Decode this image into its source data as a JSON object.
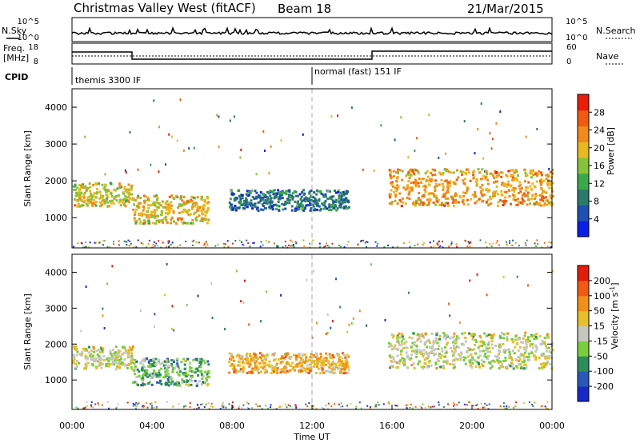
{
  "header": {
    "station": "Christmas Valley West (fitACF)",
    "beam": "Beam 18",
    "date": "21/Mar/2015"
  },
  "strips": {
    "nsky_label": "N.Sky",
    "nsearch_label": "N.Search",
    "noise_tick_top": "10^5",
    "noise_tick_bottom": "10^0",
    "freq_label_line1": "Freq.",
    "freq_label_line2": "[MHz]",
    "freq_tick_top": "18",
    "freq_tick_bottom": "8",
    "nave_label": "Nave",
    "nave_tick_top": "60",
    "nave_tick_bottom": "0",
    "cpid_label": "CPID",
    "cpid_segments": [
      {
        "label": "themis 3300 IF",
        "start_hour": 0,
        "end_hour": 12
      },
      {
        "label": "normal (fast) 151 IF",
        "start_hour": 12,
        "end_hour": 24
      }
    ]
  },
  "colors": {
    "power_scale": [
      "#0a1ee6",
      "#1f4fb0",
      "#2c7a6a",
      "#3aa84a",
      "#86c23a",
      "#e8b820",
      "#f08a18",
      "#f25a10",
      "#e61e0a"
    ],
    "velocity_scale": [
      "#1828c8",
      "#2a58b8",
      "#2c8c5c",
      "#7acd3c",
      "#c6c6c0",
      "#e6c028",
      "#f09018",
      "#f05a12",
      "#e01e0a"
    ]
  },
  "chart_data": [
    {
      "type": "heatmap",
      "title": "",
      "xlabel": "Time UT",
      "ylabel": "Slant Range [km]",
      "colorbar_label": "Power [dB]",
      "colorbar_ticks": [
        "4",
        "8",
        "12",
        "16",
        "20",
        "24",
        "28"
      ],
      "colorbar_range": [
        0,
        32
      ],
      "x_ticks": [
        "00:00",
        "04:00",
        "08:00",
        "12:00",
        "16:00",
        "20:00",
        "00:00"
      ],
      "x_range_hours": [
        0,
        24
      ],
      "y_ticks": [
        "1000",
        "2000",
        "3000",
        "4000"
      ],
      "y_range_km": [
        180,
        4500
      ],
      "regions": [
        {
          "t_start": 0.0,
          "t_end": 3.0,
          "range_center": 1650,
          "range_width": 320,
          "value": 18
        },
        {
          "t_start": 3.0,
          "t_end": 6.8,
          "range_center": 1250,
          "range_width": 380,
          "value": 20
        },
        {
          "t_start": 7.8,
          "t_end": 13.8,
          "range_center": 1500,
          "range_width": 280,
          "value": 8
        },
        {
          "t_start": 15.8,
          "t_end": 24.0,
          "range_center": 1850,
          "range_width": 500,
          "value": 22
        }
      ]
    },
    {
      "type": "heatmap",
      "title": "",
      "xlabel": "Time UT",
      "ylabel": "Slant Range [km]",
      "colorbar_label": "Velocity [m s^-1]",
      "colorbar_ticks": [
        "-200",
        "-100",
        "-50",
        "-15",
        "15",
        "50",
        "100",
        "200"
      ],
      "colorbar_range": [
        -250,
        250
      ],
      "x_ticks": [
        "00:00",
        "04:00",
        "08:00",
        "12:00",
        "16:00",
        "20:00",
        "00:00"
      ],
      "x_range_hours": [
        0,
        24
      ],
      "y_ticks": [
        "1000",
        "2000",
        "3000",
        "4000"
      ],
      "y_range_km": [
        180,
        4500
      ],
      "regions": [
        {
          "t_start": 0.0,
          "t_end": 3.0,
          "range_center": 1650,
          "range_width": 320,
          "value": 0
        },
        {
          "t_start": 3.0,
          "t_end": 6.8,
          "range_center": 1250,
          "range_width": 380,
          "value": -70
        },
        {
          "t_start": 7.8,
          "t_end": 13.8,
          "range_center": 1500,
          "range_width": 280,
          "value": 70
        },
        {
          "t_start": 15.8,
          "t_end": 24.0,
          "range_center": 1850,
          "range_width": 500,
          "value": 0
        }
      ]
    }
  ]
}
